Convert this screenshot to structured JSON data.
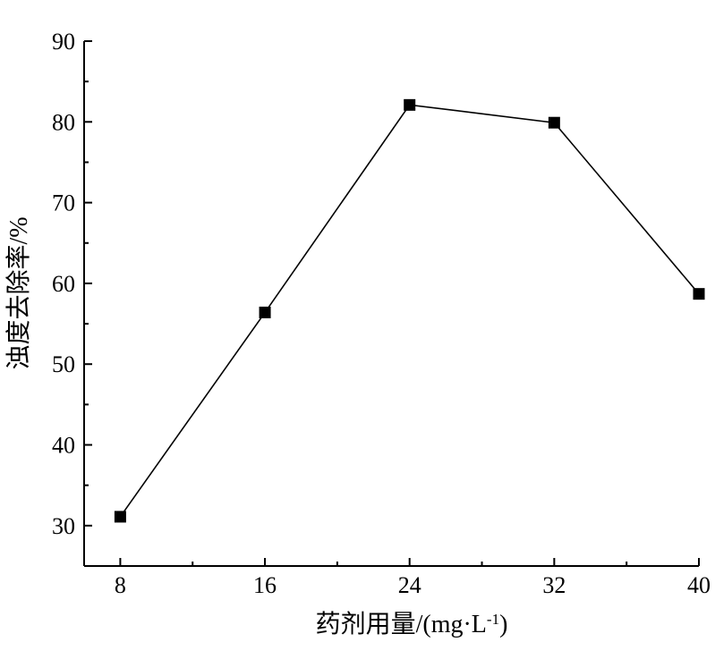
{
  "chart_data": {
    "type": "line",
    "xlabel": "药剂用量/(mg·L",
    "xlabel_sup": "-1",
    "xlabel_close": ")",
    "ylabel": "浊度去除率/%",
    "x": [
      8,
      16,
      24,
      32,
      40
    ],
    "xticks": [
      "8",
      "16",
      "24",
      "32",
      "40"
    ],
    "yticks": [
      "30",
      "40",
      "50",
      "60",
      "70",
      "80",
      "90"
    ],
    "xlim": [
      6,
      40
    ],
    "ylim": [
      25,
      90
    ],
    "series": [
      {
        "values": [
          31.1,
          56.4,
          82.1,
          79.9,
          58.7
        ],
        "marker": "square",
        "color": "#000000"
      }
    ],
    "grid": false,
    "legend": false
  }
}
